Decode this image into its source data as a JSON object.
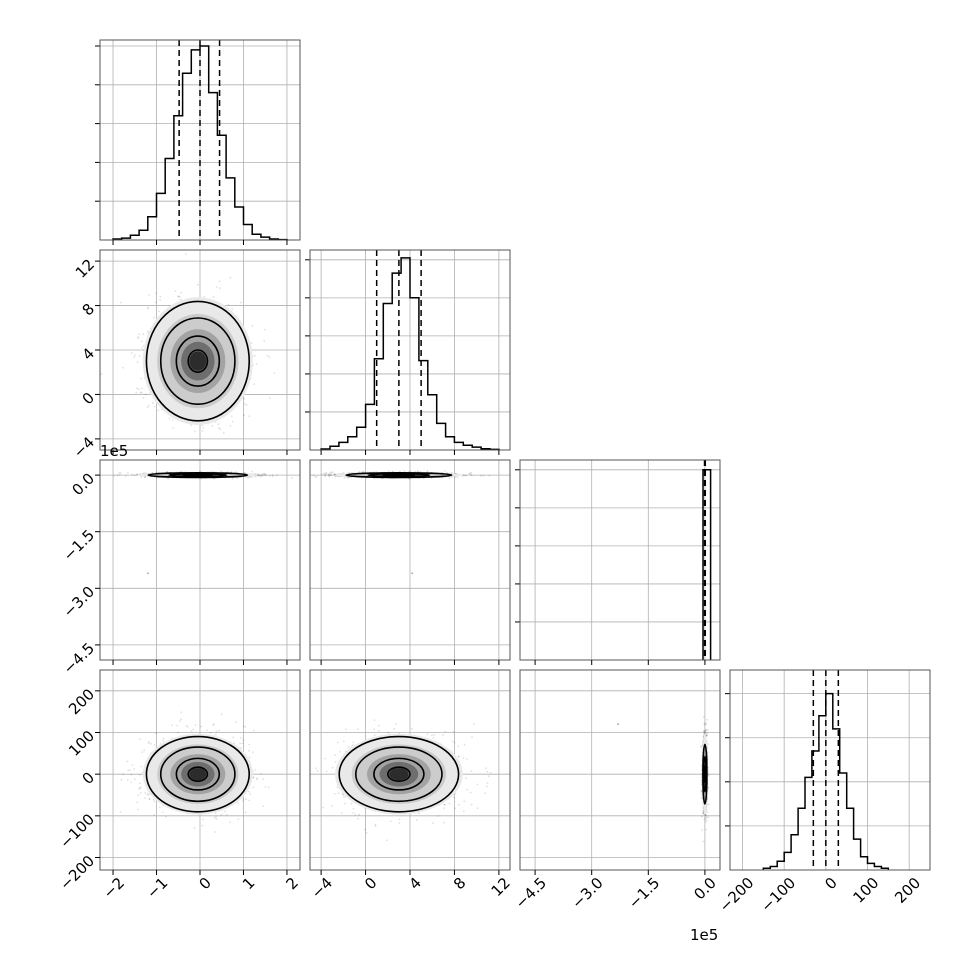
{
  "chart_data": {
    "type": "scatter",
    "title": "",
    "parameters": [
      {
        "range": [
          -2.3,
          2.3
        ],
        "ticks": [
          -2,
          -1,
          0,
          1,
          2
        ],
        "tick_labels": [
          "−2",
          "−1",
          "0",
          "1",
          "2"
        ],
        "offset_label": "",
        "quantiles": [
          -0.48,
          0.0,
          0.45
        ],
        "hist_range": [
          -2.0,
          2.0
        ],
        "hist_values": [
          0.5,
          1,
          2.5,
          5,
          12,
          24,
          42,
          64,
          86,
          98,
          100,
          76,
          54,
          32,
          17,
          8,
          3,
          1.5,
          0.5,
          0.2
        ],
        "hist_ymax": 100,
        "hist_yticks": [
          20,
          40,
          60,
          80,
          100
        ]
      },
      {
        "range": [
          -5,
          13
        ],
        "ticks": [
          -4,
          0,
          4,
          8,
          12
        ],
        "tick_labels": [
          "−4",
          "0",
          "4",
          "8",
          "12"
        ],
        "offset_label": "",
        "quantiles": [
          1.0,
          3.0,
          5.0
        ],
        "hist_range": [
          -4,
          12
        ],
        "hist_values": [
          0.5,
          2,
          4,
          7,
          12,
          24,
          48,
          77,
          93,
          101,
          80,
          47,
          29,
          14,
          7,
          4,
          2.5,
          1.5,
          0.7,
          0.3
        ],
        "hist_ymax": 102,
        "hist_yticks": [
          20,
          40,
          60,
          80,
          100
        ]
      },
      {
        "range": [
          -4.9,
          0.4
        ],
        "ticks": [
          -4.5,
          -3.0,
          -1.5,
          0.0
        ],
        "tick_labels": [
          "−4.5",
          "−3.0",
          "−1.5",
          "0.0"
        ],
        "offset_label": "1e5",
        "quantiles": [
          -0.01,
          0.0,
          0.01
        ],
        "hist_range": [
          -0.05,
          0.15
        ],
        "hist_values": [
          100
        ],
        "hist_ymax": 102,
        "hist_yticks": [
          20,
          40,
          60,
          80,
          100
        ]
      },
      {
        "range": [
          -230,
          250
        ],
        "ticks": [
          -200,
          -100,
          0,
          100,
          200
        ],
        "tick_labels": [
          "−200",
          "−100",
          "0",
          "100",
          "200"
        ],
        "offset_label": "",
        "quantiles": [
          -30,
          0,
          30
        ],
        "hist_range": [
          -150,
          150
        ],
        "hist_values": [
          0.4,
          0.8,
          2,
          4,
          8,
          14,
          21,
          27,
          35,
          40,
          32,
          22,
          14,
          7,
          3,
          1.5,
          0.8,
          0.4
        ],
        "hist_ymax": 44,
        "hist_yticks": [
          10,
          20,
          30,
          40
        ]
      }
    ],
    "pairs": [
      {
        "row": 1,
        "col": 0,
        "center": [
          -0.05,
          3.0
        ],
        "sd": [
          0.55,
          2.5
        ],
        "contours": [
          0.4,
          0.9,
          1.55,
          2.15
        ]
      },
      {
        "row": 2,
        "col": 0,
        "center": [
          -0.05,
          0.0
        ],
        "sd": [
          0.6,
          0.004
        ],
        "contours": [
          0.55,
          1.1,
          1.9
        ],
        "outliers": [
          [
            -1.2,
            -2.6
          ]
        ]
      },
      {
        "row": 2,
        "col": 1,
        "center": [
          3.0,
          0.0
        ],
        "sd": [
          2.5,
          0.004
        ],
        "contours": [
          0.55,
          1.1,
          1.9
        ],
        "outliers": [
          [
            4.2,
            -2.6
          ]
        ]
      },
      {
        "row": 3,
        "col": 0,
        "center": [
          -0.05,
          0.0
        ],
        "sd": [
          0.55,
          42
        ],
        "contours": [
          0.4,
          0.9,
          1.55,
          2.15
        ]
      },
      {
        "row": 3,
        "col": 1,
        "center": [
          3.0,
          0.0
        ],
        "sd": [
          2.5,
          42
        ],
        "contours": [
          0.4,
          0.9,
          1.55,
          2.15
        ]
      },
      {
        "row": 3,
        "col": 2,
        "center": [
          0.0,
          0.0
        ],
        "sd": [
          0.03,
          42
        ],
        "contours": [
          0.45,
          1.0,
          1.7
        ],
        "outliers": [
          [
            -2.3,
            120
          ]
        ]
      }
    ],
    "grid": true,
    "legend": "none"
  }
}
